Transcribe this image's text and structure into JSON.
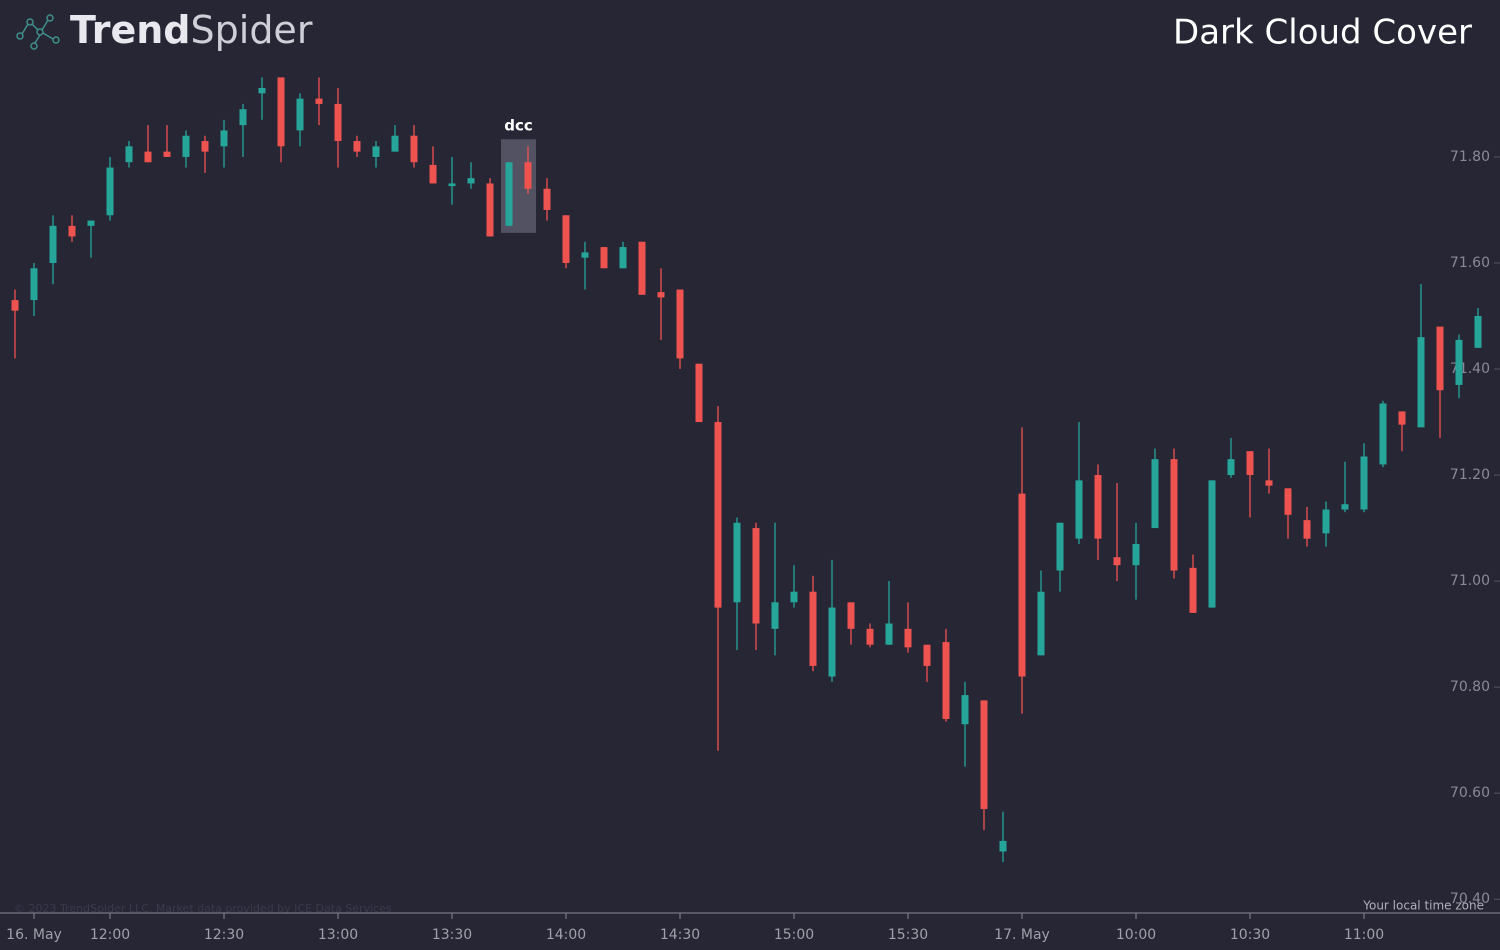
{
  "brand": [
    "Trend",
    "Spider"
  ],
  "chart_data": {
    "type": "candlestick",
    "title": "Dark Cloud Cover",
    "annotation": "dcc",
    "footer_note": "Your local time zone",
    "copyright": "© 2023 TrendSpider LLC. Market data provided by ICE Data Services",
    "up_color": "#26a69a",
    "down_color": "#ef5350",
    "categories": [
      null,
      "16. May",
      null,
      null,
      null,
      "12:00",
      null,
      null,
      null,
      null,
      null,
      "12:30",
      null,
      null,
      null,
      null,
      null,
      "13:00",
      null,
      null,
      null,
      null,
      null,
      "13:30",
      null,
      null,
      null,
      null,
      null,
      "14:00",
      null,
      null,
      null,
      null,
      null,
      "14:30",
      null,
      null,
      null,
      null,
      null,
      "15:00",
      null,
      null,
      null,
      null,
      null,
      "15:30",
      null,
      null,
      null,
      null,
      null,
      "17. May",
      null,
      null,
      null,
      null,
      null,
      "10:00",
      null,
      null,
      null,
      null,
      null,
      "10:30",
      null,
      null,
      null,
      null,
      null,
      "11:00",
      null,
      null,
      null,
      null,
      null,
      null
    ],
    "open": [
      71.53,
      71.53,
      71.6,
      71.67,
      71.67,
      71.69,
      71.79,
      71.81,
      71.81,
      71.8,
      71.83,
      71.82,
      71.86,
      71.92,
      71.95,
      71.85,
      71.91,
      71.9,
      71.83,
      71.8,
      71.81,
      71.84,
      71.785,
      71.745,
      71.75,
      71.75,
      71.67,
      71.79,
      71.74,
      71.69,
      71.61,
      71.63,
      71.59,
      71.64,
      71.545,
      71.55,
      71.41,
      71.3,
      70.96,
      71.1,
      70.91,
      70.96,
      70.98,
      70.82,
      70.96,
      70.91,
      70.88,
      70.91,
      70.88,
      70.885,
      70.73,
      70.775,
      70.49,
      71.165,
      70.86,
      71.02,
      71.08,
      71.2,
      71.045,
      71.03,
      71.1,
      71.23,
      71.025,
      70.95,
      71.2,
      71.245,
      71.19,
      71.175,
      71.115,
      71.09,
      71.135,
      71.135,
      71.22,
      71.32,
      71.29,
      71.48,
      71.37,
      71.44
    ],
    "high": [
      71.55,
      71.6,
      71.69,
      71.69,
      71.68,
      71.8,
      71.83,
      71.86,
      71.86,
      71.85,
      71.84,
      71.87,
      71.9,
      71.95,
      71.95,
      71.92,
      71.95,
      71.93,
      71.84,
      71.83,
      71.86,
      71.86,
      71.82,
      71.8,
      71.79,
      71.76,
      71.79,
      71.82,
      71.76,
      71.69,
      71.64,
      71.63,
      71.64,
      71.64,
      71.59,
      71.55,
      71.41,
      71.33,
      71.12,
      71.11,
      71.11,
      71.03,
      71.01,
      71.04,
      70.96,
      70.92,
      71.0,
      70.96,
      70.88,
      70.91,
      70.81,
      70.775,
      70.565,
      71.29,
      71.02,
      71.11,
      71.3,
      71.22,
      71.185,
      71.11,
      71.25,
      71.25,
      71.05,
      71.19,
      71.27,
      71.245,
      71.25,
      71.175,
      71.14,
      71.15,
      71.225,
      71.26,
      71.34,
      71.32,
      71.56,
      71.48,
      71.465,
      71.515
    ],
    "low": [
      71.42,
      71.5,
      71.56,
      71.64,
      71.61,
      71.68,
      71.78,
      71.79,
      71.8,
      71.78,
      71.77,
      71.78,
      71.8,
      71.87,
      71.79,
      71.82,
      71.86,
      71.78,
      71.8,
      71.78,
      71.81,
      71.78,
      71.75,
      71.71,
      71.74,
      71.65,
      71.67,
      71.73,
      71.68,
      71.59,
      71.55,
      71.59,
      71.59,
      71.54,
      71.455,
      71.4,
      71.3,
      70.68,
      70.87,
      70.87,
      70.86,
      70.95,
      70.83,
      70.81,
      70.88,
      70.875,
      70.88,
      70.865,
      70.81,
      70.735,
      70.65,
      70.53,
      70.47,
      70.75,
      70.86,
      70.98,
      71.07,
      71.04,
      71.0,
      70.965,
      71.1,
      71.005,
      70.94,
      70.95,
      71.195,
      71.12,
      71.165,
      71.08,
      71.065,
      71.065,
      71.13,
      71.13,
      71.215,
      71.245,
      71.29,
      71.27,
      71.345,
      71.44
    ],
    "close": [
      71.51,
      71.59,
      71.67,
      71.65,
      71.68,
      71.78,
      71.82,
      71.79,
      71.8,
      71.84,
      71.81,
      71.85,
      71.89,
      71.93,
      71.82,
      71.91,
      71.9,
      71.83,
      71.81,
      71.82,
      71.84,
      71.79,
      71.75,
      71.75,
      71.76,
      71.65,
      71.79,
      71.74,
      71.7,
      71.6,
      71.62,
      71.59,
      71.63,
      71.54,
      71.535,
      71.42,
      71.3,
      70.95,
      71.11,
      70.92,
      70.96,
      70.98,
      70.84,
      70.95,
      70.91,
      70.88,
      70.92,
      70.875,
      70.84,
      70.74,
      70.785,
      70.57,
      70.51,
      70.82,
      70.98,
      71.11,
      71.19,
      71.08,
      71.03,
      71.07,
      71.23,
      71.02,
      70.94,
      71.19,
      71.23,
      71.2,
      71.18,
      71.125,
      71.08,
      71.135,
      71.145,
      71.235,
      71.335,
      71.295,
      71.46,
      71.36,
      71.455,
      71.5
    ],
    "ylim": [
      70.374,
      72.096
    ],
    "yticks": [
      {
        "value": 70.4,
        "label": "70.40"
      },
      {
        "value": 70.6,
        "label": "70.60"
      },
      {
        "value": 70.8,
        "label": "70.80"
      },
      {
        "value": 71.0,
        "label": "71.00"
      },
      {
        "value": 71.2,
        "label": "71.20"
      },
      {
        "value": 71.4,
        "label": "71.40"
      },
      {
        "value": 71.6,
        "label": "71.60"
      },
      {
        "value": 71.8,
        "label": "71.80"
      }
    ]
  }
}
